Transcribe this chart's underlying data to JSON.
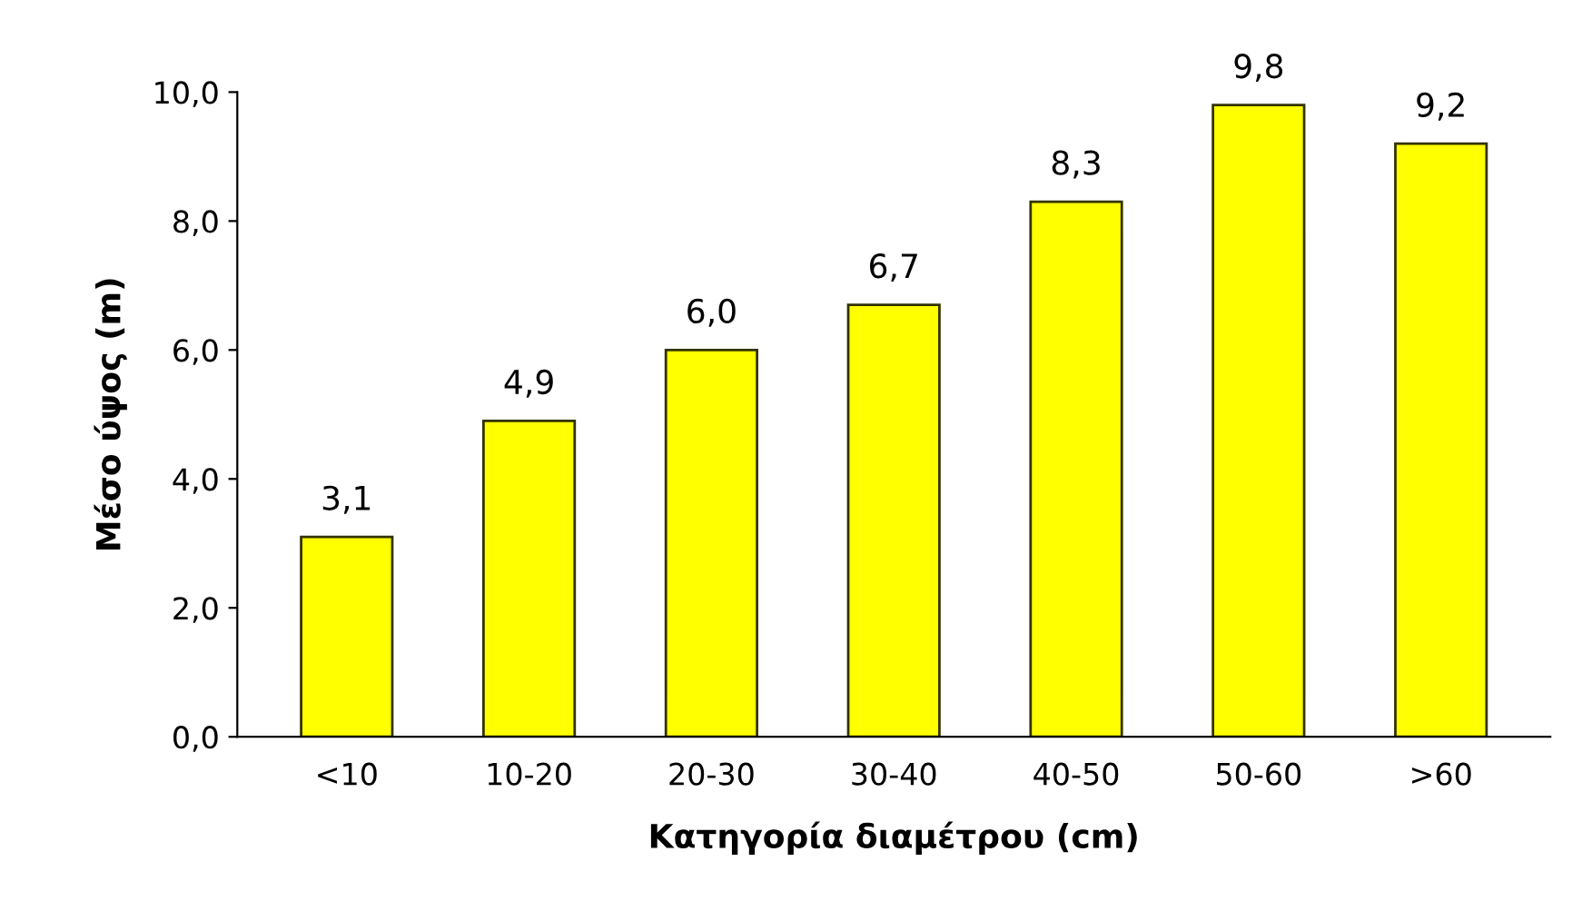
{
  "chart_data": {
    "type": "bar",
    "xlabel": "Κατηγορία διαμέτρου (cm)",
    "ylabel": "Μέσο ύψος (m)",
    "categories": [
      "<10",
      "10-20",
      "20-30",
      "30-40",
      "40-50",
      "50-60",
      ">60"
    ],
    "values": [
      3.1,
      4.9,
      6.0,
      6.7,
      8.3,
      9.8,
      9.2
    ],
    "value_labels": [
      "3,1",
      "4,9",
      "6,0",
      "6,7",
      "8,3",
      "9,8",
      "9,2"
    ],
    "color": "#ffff00",
    "ylim": [
      0,
      10
    ],
    "yticks": [
      {
        "value": 0,
        "label": "0,0"
      },
      {
        "value": 2,
        "label": "2,0"
      },
      {
        "value": 4,
        "label": "4,0"
      },
      {
        "value": 6,
        "label": "6,0"
      },
      {
        "value": 8,
        "label": "8,0"
      },
      {
        "value": 10,
        "label": "10,0"
      }
    ],
    "grid": false,
    "legend": false
  }
}
